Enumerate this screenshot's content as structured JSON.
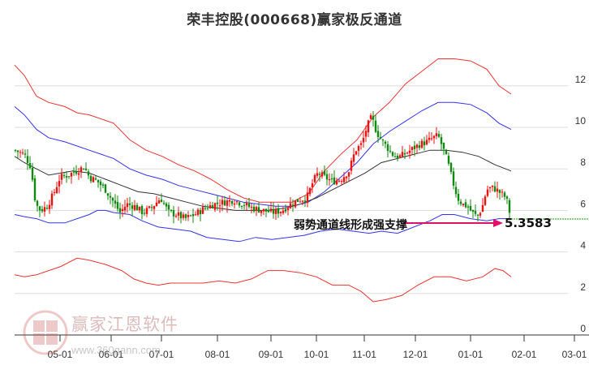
{
  "title": "荣丰控股(000668)赢家极反通道",
  "annotation": {
    "text": "弱势通道线形成强支撑",
    "value": "5.3583",
    "arrow_color": "#e0106a"
  },
  "watermark": {
    "text": "赢家江恩软件",
    "url": "www.360gann.com",
    "logo_chars": [
      "江",
      "赢",
      "恩",
      "家"
    ]
  },
  "colors": {
    "up": "#ee1111",
    "down": "#118811",
    "outer_band": "#ee3333",
    "inner_band": "#3333ee",
    "mid_line": "#333333",
    "grid": "#dddddd",
    "last_price_line": "#119911"
  },
  "chart_data": {
    "type": "candlestick",
    "title": "荣丰控股(000668)赢家极反通道",
    "xlabel": "",
    "ylabel": "",
    "ylim": [
      0,
      12.5
    ],
    "y_ticks": [
      0,
      2,
      4,
      6,
      8,
      10,
      12
    ],
    "x_ticks": [
      "05-01",
      "06-01",
      "07-01",
      "08-01",
      "09-01",
      "10-01",
      "11-01",
      "12-01",
      "01-01",
      "02-01",
      "03-01"
    ],
    "x_tick_pos": [
      74,
      137,
      199,
      268,
      334,
      390,
      449,
      512,
      580,
      646,
      708
    ],
    "grid": true,
    "last_value": 5.3583,
    "annotation": "弱势通道线形成强支撑",
    "close_path": [
      [
        18,
        8.9
      ],
      [
        30,
        8.7
      ],
      [
        38,
        8.1
      ],
      [
        44,
        6.3
      ],
      [
        50,
        6.0
      ],
      [
        58,
        6.2
      ],
      [
        66,
        6.8
      ],
      [
        74,
        7.6
      ],
      [
        84,
        7.7
      ],
      [
        94,
        7.9
      ],
      [
        104,
        8.1
      ],
      [
        110,
        7.6
      ],
      [
        120,
        7.4
      ],
      [
        130,
        7.0
      ],
      [
        140,
        6.4
      ],
      [
        148,
        5.9
      ],
      [
        156,
        6.3
      ],
      [
        166,
        6.2
      ],
      [
        176,
        5.9
      ],
      [
        186,
        6.1
      ],
      [
        198,
        6.6
      ],
      [
        208,
        5.9
      ],
      [
        218,
        5.8
      ],
      [
        228,
        5.6
      ],
      [
        240,
        5.8
      ],
      [
        252,
        6.1
      ],
      [
        264,
        6.3
      ],
      [
        276,
        6.4
      ],
      [
        288,
        6.5
      ],
      [
        300,
        6.3
      ],
      [
        312,
        6.1
      ],
      [
        324,
        6.0
      ],
      [
        336,
        5.9
      ],
      [
        348,
        6.0
      ],
      [
        358,
        6.3
      ],
      [
        368,
        6.5
      ],
      [
        378,
        6.6
      ],
      [
        386,
        7.4
      ],
      [
        392,
        7.8
      ],
      [
        400,
        7.6
      ],
      [
        410,
        7.4
      ],
      [
        420,
        7.5
      ],
      [
        430,
        7.9
      ],
      [
        438,
        8.9
      ],
      [
        446,
        9.2
      ],
      [
        452,
        10.0
      ],
      [
        458,
        10.5
      ],
      [
        464,
        9.8
      ],
      [
        470,
        9.4
      ],
      [
        478,
        9.0
      ],
      [
        486,
        8.6
      ],
      [
        494,
        8.6
      ],
      [
        502,
        8.8
      ],
      [
        510,
        9.0
      ],
      [
        518,
        9.2
      ],
      [
        526,
        9.3
      ],
      [
        534,
        9.5
      ],
      [
        540,
        9.6
      ],
      [
        546,
        9.0
      ],
      [
        552,
        8.3
      ],
      [
        558,
        7.4
      ],
      [
        564,
        6.6
      ],
      [
        570,
        6.3
      ],
      [
        576,
        6.2
      ],
      [
        582,
        5.9
      ],
      [
        588,
        5.7
      ],
      [
        594,
        6.1
      ],
      [
        600,
        7.0
      ],
      [
        606,
        7.1
      ],
      [
        612,
        7.0
      ],
      [
        618,
        6.8
      ],
      [
        624,
        6.6
      ],
      [
        630,
        5.6
      ]
    ],
    "series": [
      {
        "name": "outer_upper",
        "color": "#ee3333",
        "values": [
          [
            18,
            13.0
          ],
          [
            30,
            12.5
          ],
          [
            45,
            11.5
          ],
          [
            60,
            11.2
          ],
          [
            80,
            11.0
          ],
          [
            95,
            10.7
          ],
          [
            110,
            10.6
          ],
          [
            140,
            10.2
          ],
          [
            160,
            9.4
          ],
          [
            180,
            8.9
          ],
          [
            200,
            8.6
          ],
          [
            220,
            8.2
          ],
          [
            240,
            7.9
          ],
          [
            260,
            7.5
          ],
          [
            280,
            7.0
          ],
          [
            300,
            6.6
          ],
          [
            320,
            6.4
          ],
          [
            340,
            6.4
          ],
          [
            360,
            6.4
          ],
          [
            380,
            6.8
          ],
          [
            400,
            7.9
          ],
          [
            420,
            8.7
          ],
          [
            440,
            9.4
          ],
          [
            460,
            10.5
          ],
          [
            480,
            11.2
          ],
          [
            500,
            12.1
          ],
          [
            520,
            12.7
          ],
          [
            540,
            13.3
          ],
          [
            560,
            13.3
          ],
          [
            580,
            13.2
          ],
          [
            600,
            12.8
          ],
          [
            615,
            12.0
          ],
          [
            630,
            11.6
          ]
        ]
      },
      {
        "name": "inner_upper",
        "color": "#3333ee",
        "values": [
          [
            18,
            11.0
          ],
          [
            30,
            10.6
          ],
          [
            45,
            9.9
          ],
          [
            60,
            9.5
          ],
          [
            80,
            9.3
          ],
          [
            95,
            9.1
          ],
          [
            110,
            8.9
          ],
          [
            140,
            8.5
          ],
          [
            160,
            8.0
          ],
          [
            180,
            7.7
          ],
          [
            200,
            7.5
          ],
          [
            220,
            7.2
          ],
          [
            240,
            7.0
          ],
          [
            260,
            6.8
          ],
          [
            280,
            6.6
          ],
          [
            300,
            6.4
          ],
          [
            320,
            6.3
          ],
          [
            340,
            6.2
          ],
          [
            360,
            6.2
          ],
          [
            380,
            6.4
          ],
          [
            400,
            6.9
          ],
          [
            420,
            7.6
          ],
          [
            440,
            8.3
          ],
          [
            460,
            9.2
          ],
          [
            480,
            9.8
          ],
          [
            500,
            10.3
          ],
          [
            520,
            10.8
          ],
          [
            540,
            11.2
          ],
          [
            560,
            11.2
          ],
          [
            580,
            11.1
          ],
          [
            600,
            10.7
          ],
          [
            615,
            10.2
          ],
          [
            630,
            9.9
          ]
        ]
      },
      {
        "name": "mid",
        "color": "#333333",
        "values": [
          [
            18,
            8.6
          ],
          [
            30,
            8.3
          ],
          [
            45,
            8.0
          ],
          [
            60,
            7.7
          ],
          [
            75,
            7.8
          ],
          [
            90,
            7.9
          ],
          [
            110,
            7.8
          ],
          [
            130,
            7.5
          ],
          [
            150,
            7.2
          ],
          [
            170,
            6.9
          ],
          [
            190,
            6.8
          ],
          [
            210,
            6.6
          ],
          [
            230,
            6.4
          ],
          [
            250,
            6.2
          ],
          [
            270,
            6.1
          ],
          [
            290,
            6.0
          ],
          [
            310,
            6.0
          ],
          [
            330,
            6.0
          ],
          [
            350,
            6.1
          ],
          [
            370,
            6.3
          ],
          [
            390,
            6.6
          ],
          [
            410,
            7.0
          ],
          [
            430,
            7.4
          ],
          [
            450,
            7.8
          ],
          [
            470,
            8.3
          ],
          [
            490,
            8.5
          ],
          [
            510,
            8.7
          ],
          [
            530,
            8.9
          ],
          [
            550,
            8.9
          ],
          [
            570,
            8.8
          ],
          [
            590,
            8.6
          ],
          [
            610,
            8.2
          ],
          [
            630,
            7.9
          ]
        ]
      },
      {
        "name": "inner_lower",
        "color": "#3333ee",
        "values": [
          [
            18,
            5.8
          ],
          [
            30,
            5.7
          ],
          [
            45,
            5.6
          ],
          [
            60,
            5.4
          ],
          [
            80,
            5.4
          ],
          [
            95,
            5.6
          ],
          [
            110,
            5.8
          ],
          [
            120,
            6.0
          ],
          [
            130,
            6.0
          ],
          [
            140,
            5.9
          ],
          [
            160,
            5.8
          ],
          [
            175,
            5.5
          ],
          [
            195,
            5.2
          ],
          [
            215,
            5.1
          ],
          [
            235,
            5.0
          ],
          [
            255,
            4.7
          ],
          [
            275,
            4.6
          ],
          [
            295,
            4.5
          ],
          [
            315,
            4.7
          ],
          [
            335,
            4.6
          ],
          [
            355,
            4.7
          ],
          [
            375,
            4.8
          ],
          [
            395,
            5.0
          ],
          [
            415,
            5.1
          ],
          [
            435,
            5.0
          ],
          [
            455,
            4.9
          ],
          [
            470,
            5.0
          ],
          [
            490,
            4.9
          ],
          [
            510,
            5.2
          ],
          [
            530,
            5.5
          ],
          [
            545,
            5.8
          ],
          [
            560,
            5.8
          ],
          [
            580,
            5.6
          ],
          [
            600,
            5.5
          ],
          [
            615,
            5.6
          ],
          [
            630,
            5.6
          ]
        ]
      },
      {
        "name": "outer_lower",
        "color": "#ee3333",
        "values": [
          [
            18,
            2.9
          ],
          [
            30,
            2.8
          ],
          [
            45,
            2.9
          ],
          [
            60,
            3.1
          ],
          [
            75,
            3.3
          ],
          [
            95,
            3.7
          ],
          [
            110,
            3.6
          ],
          [
            130,
            3.4
          ],
          [
            150,
            3.1
          ],
          [
            165,
            2.7
          ],
          [
            180,
            2.5
          ],
          [
            195,
            2.4
          ],
          [
            210,
            2.5
          ],
          [
            230,
            2.5
          ],
          [
            250,
            2.5
          ],
          [
            270,
            2.6
          ],
          [
            290,
            2.5
          ],
          [
            310,
            2.7
          ],
          [
            330,
            3.1
          ],
          [
            350,
            3.1
          ],
          [
            370,
            3.0
          ],
          [
            390,
            2.8
          ],
          [
            410,
            2.4
          ],
          [
            430,
            2.4
          ],
          [
            445,
            2.1
          ],
          [
            460,
            1.6
          ],
          [
            475,
            1.7
          ],
          [
            495,
            1.9
          ],
          [
            515,
            2.4
          ],
          [
            535,
            2.8
          ],
          [
            555,
            2.8
          ],
          [
            575,
            2.6
          ],
          [
            595,
            2.8
          ],
          [
            610,
            3.2
          ],
          [
            620,
            3.1
          ],
          [
            630,
            2.8
          ]
        ]
      }
    ]
  }
}
